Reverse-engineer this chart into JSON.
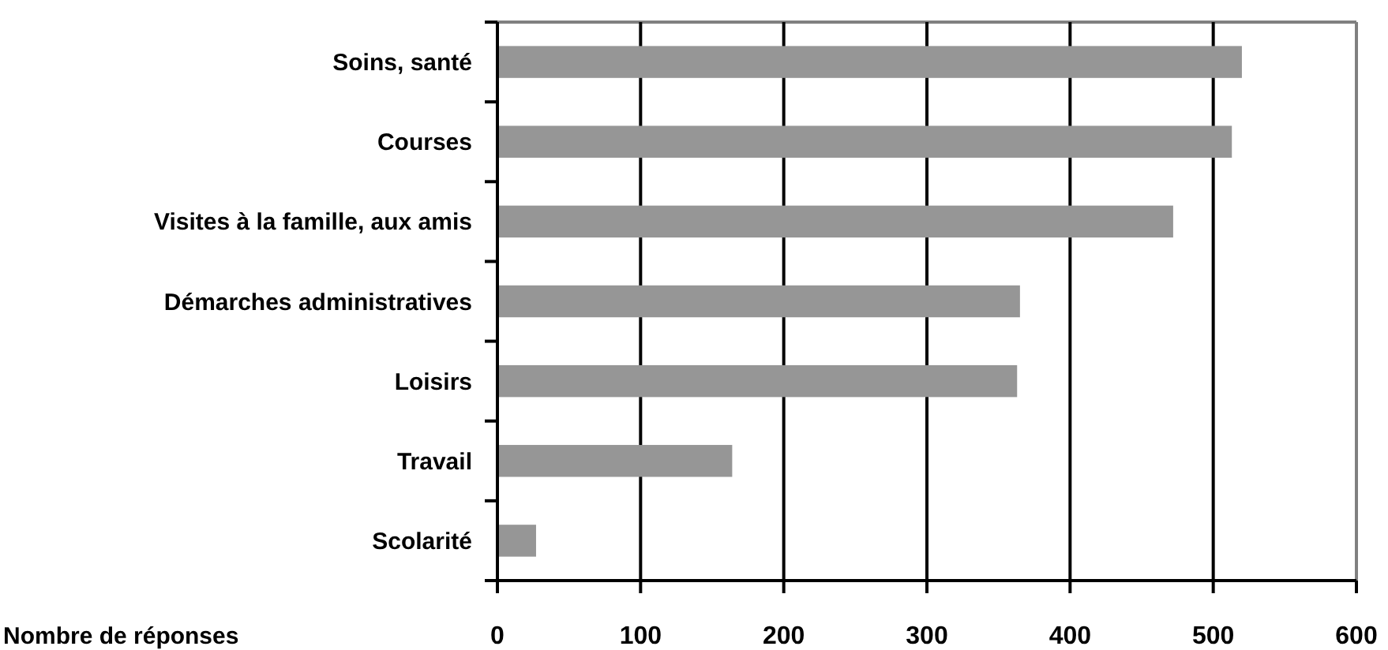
{
  "chart_data": {
    "type": "bar",
    "orientation": "horizontal",
    "xlabel": "Nombre de réponses",
    "categories": [
      "Soins, santé",
      "Courses",
      "Visites à la famille, aux amis",
      "Démarches administratives",
      "Loisirs",
      "Travail",
      "Scolarité"
    ],
    "values": [
      520,
      513,
      472,
      365,
      363,
      164,
      27
    ],
    "color": "#969696",
    "xlim": [
      0,
      600
    ],
    "xticks": [
      0,
      100,
      200,
      300,
      400,
      500,
      600
    ],
    "grid": "x"
  }
}
